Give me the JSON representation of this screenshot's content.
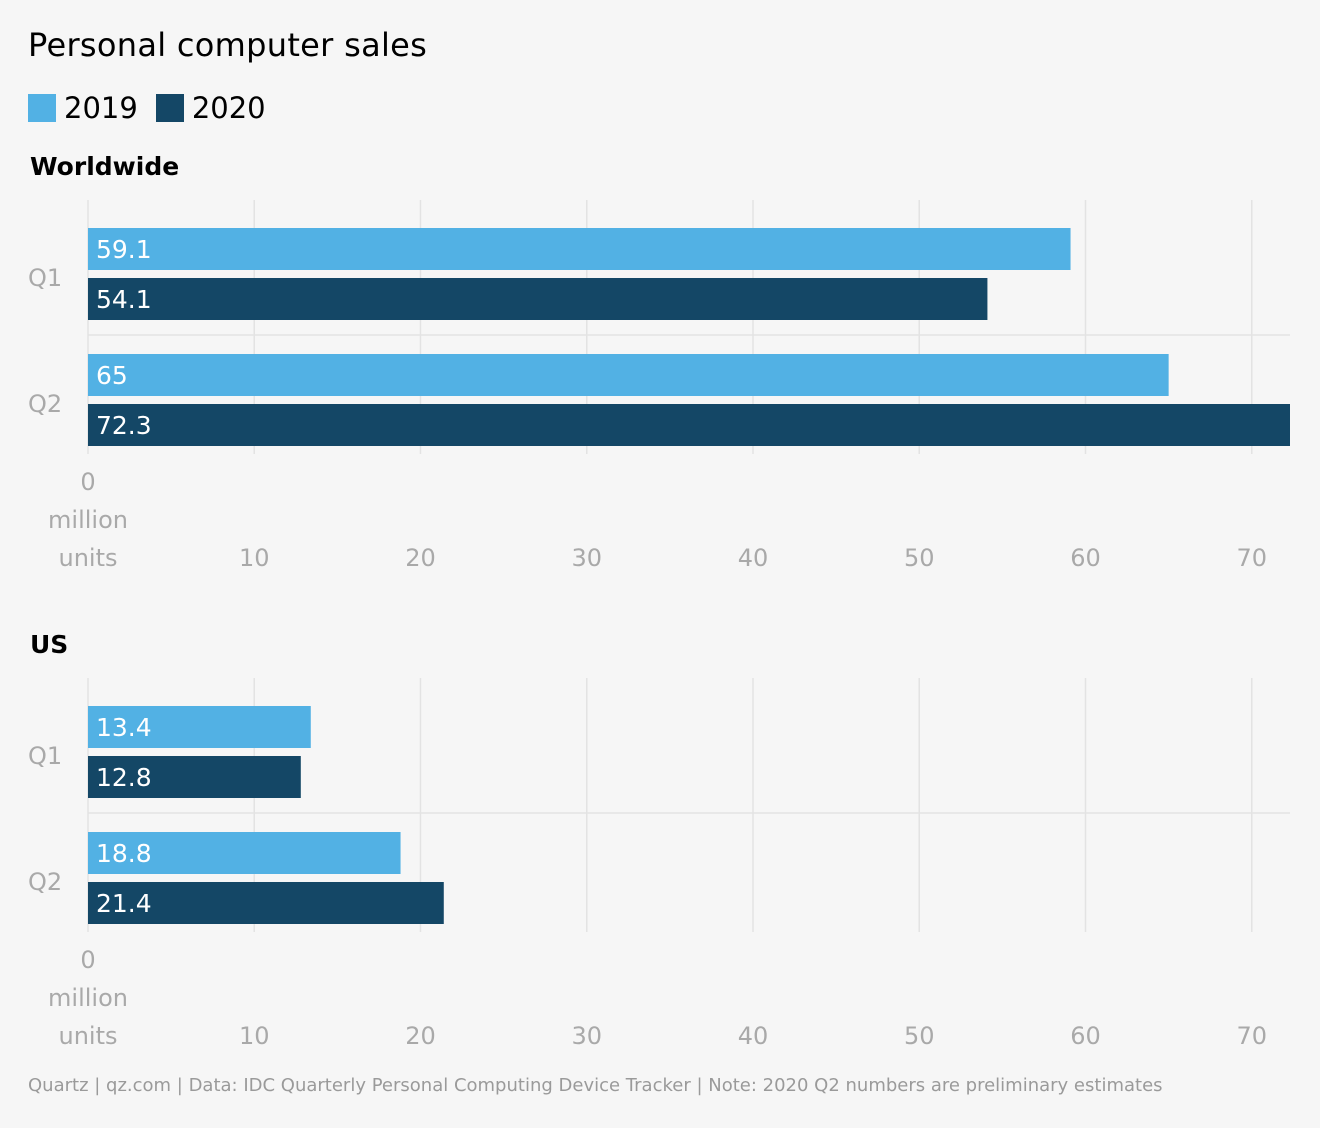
{
  "title": "Personal computer sales",
  "legend": [
    {
      "label": "2019",
      "color": "#52b1e4"
    },
    {
      "label": "2020",
      "color": "#144766"
    }
  ],
  "footer": "Quartz | qz.com | Data: IDC Quarterly Personal Computing Device Tracker | Note: 2020 Q2 numbers are preliminary estimates",
  "chart_data": [
    {
      "type": "bar",
      "orientation": "horizontal",
      "title": "Worldwide",
      "categories": [
        "Q1",
        "Q2"
      ],
      "series": [
        {
          "name": "2019",
          "values": [
            59.1,
            65
          ],
          "labels": [
            "59.1",
            "65"
          ],
          "color": "#52b1e4"
        },
        {
          "name": "2020",
          "values": [
            54.1,
            72.3
          ],
          "labels": [
            "54.1",
            "72.3"
          ],
          "color": "#144766"
        }
      ],
      "xlim": [
        0,
        72.3
      ],
      "xticks": [
        0,
        10,
        20,
        30,
        40,
        50,
        60,
        70
      ],
      "xtick_first_label": [
        "0",
        "million",
        "units"
      ],
      "grid": true
    },
    {
      "type": "bar",
      "orientation": "horizontal",
      "title": "US",
      "categories": [
        "Q1",
        "Q2"
      ],
      "series": [
        {
          "name": "2019",
          "values": [
            13.4,
            18.8
          ],
          "labels": [
            "13.4",
            "18.8"
          ],
          "color": "#52b1e4"
        },
        {
          "name": "2020",
          "values": [
            12.8,
            21.4
          ],
          "labels": [
            "12.8",
            "21.4"
          ],
          "color": "#144766"
        }
      ],
      "xlim": [
        0,
        72.3
      ],
      "xticks": [
        0,
        10,
        20,
        30,
        40,
        50,
        60,
        70
      ],
      "xtick_first_label": [
        "0",
        "million",
        "units"
      ],
      "grid": true
    }
  ]
}
